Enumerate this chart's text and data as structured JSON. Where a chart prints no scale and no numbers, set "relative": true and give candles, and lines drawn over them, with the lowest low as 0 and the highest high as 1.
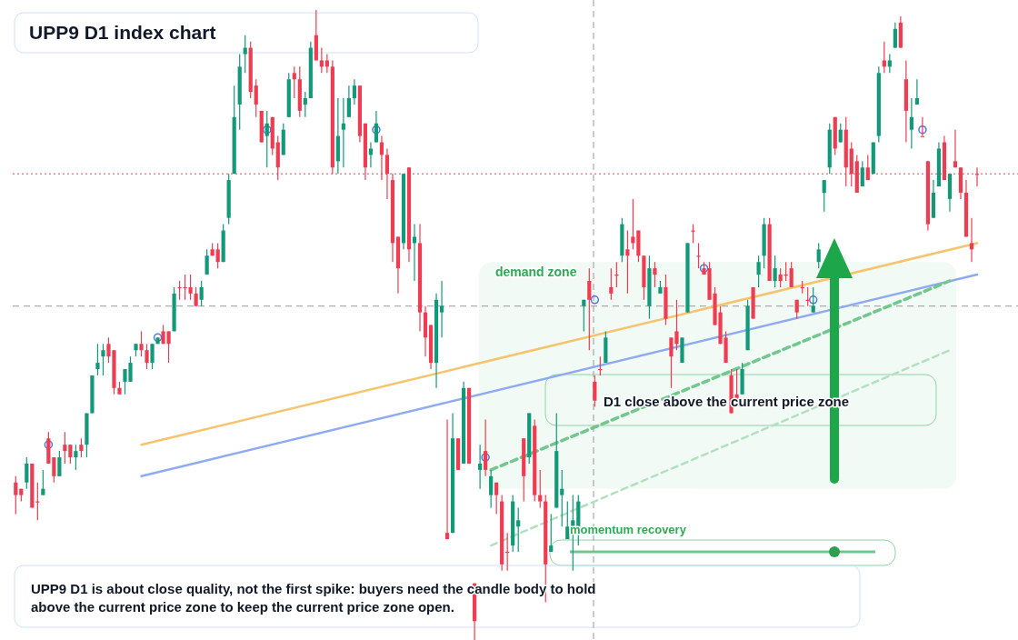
{
  "chart_data": {
    "type": "candlestick",
    "title": "UPP9 D1 index chart",
    "relative": true,
    "categories": [
      null,
      null,
      null,
      null,
      null,
      null,
      null,
      null,
      null,
      null,
      null,
      null,
      null,
      null,
      null,
      null,
      null,
      null,
      null,
      null,
      null,
      null,
      null,
      null,
      null,
      null,
      null,
      null,
      null,
      null,
      null,
      null,
      null,
      null,
      null,
      null,
      null,
      null,
      null,
      null,
      null,
      null,
      null,
      null,
      null,
      null,
      null,
      null,
      null,
      null,
      null,
      null,
      null,
      null,
      null,
      null,
      null,
      null,
      null,
      null,
      null,
      null,
      null,
      null,
      null,
      null,
      null,
      null,
      null,
      null,
      null,
      null,
      null,
      null,
      null,
      null,
      null,
      null,
      null,
      null,
      null,
      null,
      null,
      null,
      null,
      null,
      null,
      null,
      null,
      null,
      null,
      null,
      null,
      null,
      null,
      null,
      null,
      null,
      null,
      null,
      null,
      null,
      null,
      null,
      null,
      null,
      null,
      null,
      null,
      null,
      null,
      null,
      null,
      null,
      null,
      null,
      null,
      null,
      null,
      null,
      null,
      null,
      null,
      null,
      null,
      null,
      null,
      null,
      null,
      null,
      null,
      null,
      null,
      null,
      null,
      null,
      null,
      null,
      null,
      null,
      null,
      null,
      null,
      null,
      null,
      null,
      null,
      null,
      null,
      null,
      null,
      null,
      null,
      null,
      null,
      null,
      null,
      null,
      null,
      null,
      null,
      null,
      null,
      null,
      null,
      null,
      null,
      null,
      null,
      null,
      null,
      null,
      null,
      null,
      null,
      null,
      null
    ],
    "ohlc": [
      [
        0.25,
        0.26,
        0.2,
        0.23
      ],
      [
        0.24,
        0.24,
        0.22,
        0.23
      ],
      [
        0.25,
        0.29,
        0.24,
        0.28
      ],
      [
        0.28,
        0.28,
        0.21,
        0.21
      ],
      [
        0.22,
        0.25,
        0.19,
        0.22
      ],
      [
        0.23,
        0.27,
        0.23,
        0.24
      ],
      [
        0.32,
        0.33,
        0.28,
        0.28
      ],
      [
        0.29,
        0.29,
        0.25,
        0.26
      ],
      [
        0.26,
        0.3,
        0.26,
        0.29
      ],
      [
        0.31,
        0.33,
        0.28,
        0.3
      ],
      [
        0.31,
        0.31,
        0.28,
        0.29
      ],
      [
        0.29,
        0.31,
        0.27,
        0.3
      ],
      [
        0.31,
        0.32,
        0.29,
        0.3
      ],
      [
        0.31,
        0.36,
        0.29,
        0.36
      ],
      [
        0.36,
        0.42,
        0.36,
        0.42
      ],
      [
        0.43,
        0.47,
        0.42,
        0.44
      ],
      [
        0.45,
        0.47,
        0.42,
        0.46
      ],
      [
        0.47,
        0.48,
        0.44,
        0.45
      ],
      [
        0.46,
        0.46,
        0.39,
        0.4
      ],
      [
        0.4,
        0.41,
        0.39,
        0.39
      ],
      [
        0.41,
        0.43,
        0.39,
        0.43
      ],
      [
        0.41,
        0.45,
        0.41,
        0.44
      ],
      [
        0.46,
        0.47,
        0.45,
        0.47
      ],
      [
        0.47,
        0.49,
        0.45,
        0.46
      ],
      [
        0.46,
        0.47,
        0.43,
        0.44
      ],
      [
        0.44,
        0.47,
        0.43,
        0.47
      ],
      [
        0.47,
        0.48,
        0.47,
        0.48
      ],
      [
        0.49,
        0.5,
        0.47,
        0.47
      ],
      [
        0.49,
        0.49,
        0.44,
        0.47
      ],
      [
        0.49,
        0.56,
        0.49,
        0.55
      ],
      [
        0.56,
        0.57,
        0.54,
        0.56
      ],
      [
        0.56,
        0.58,
        0.54,
        0.56
      ],
      [
        0.56,
        0.58,
        0.54,
        0.55
      ],
      [
        0.55,
        0.56,
        0.53,
        0.53
      ],
      [
        0.54,
        0.57,
        0.53,
        0.56
      ],
      [
        0.58,
        0.62,
        0.58,
        0.61
      ],
      [
        0.62,
        0.63,
        0.61,
        0.61
      ],
      [
        0.62,
        0.63,
        0.59,
        0.6
      ],
      [
        0.6,
        0.66,
        0.6,
        0.65
      ],
      [
        0.67,
        0.74,
        0.66,
        0.73
      ],
      [
        0.74,
        0.88,
        0.74,
        0.83
      ],
      [
        0.85,
        0.93,
        0.81,
        0.91
      ],
      [
        0.93,
        0.96,
        0.9,
        0.94
      ],
      [
        0.94,
        0.95,
        0.86,
        0.87
      ],
      [
        0.88,
        0.89,
        0.83,
        0.85
      ],
      [
        0.84,
        0.84,
        0.79,
        0.79
      ],
      [
        0.8,
        0.84,
        0.75,
        0.82
      ],
      [
        0.83,
        0.83,
        0.77,
        0.78
      ],
      [
        0.79,
        0.8,
        0.73,
        0.75
      ],
      [
        0.77,
        0.82,
        0.77,
        0.81
      ],
      [
        0.83,
        0.9,
        0.83,
        0.89
      ],
      [
        0.9,
        0.91,
        0.86,
        0.89
      ],
      [
        0.89,
        0.91,
        0.83,
        0.84
      ],
      [
        0.85,
        0.87,
        0.83,
        0.86
      ],
      [
        0.86,
        0.95,
        0.86,
        0.94
      ],
      [
        0.96,
        1.0,
        0.92,
        0.92
      ],
      [
        0.92,
        0.94,
        0.9,
        0.91
      ],
      [
        0.92,
        0.93,
        0.9,
        0.91
      ],
      [
        0.91,
        0.92,
        0.74,
        0.75
      ],
      [
        0.76,
        0.86,
        0.74,
        0.8
      ],
      [
        0.81,
        0.86,
        0.75,
        0.82
      ],
      [
        0.83,
        0.88,
        0.83,
        0.86
      ],
      [
        0.86,
        0.89,
        0.85,
        0.88
      ],
      [
        0.88,
        0.88,
        0.79,
        0.8
      ],
      [
        0.82,
        0.82,
        0.73,
        0.75
      ],
      [
        0.77,
        0.79,
        0.75,
        0.78
      ],
      [
        0.79,
        0.84,
        0.79,
        0.82
      ],
      [
        0.79,
        0.8,
        0.73,
        0.77
      ],
      [
        0.77,
        0.78,
        0.7,
        0.74
      ],
      [
        0.73,
        0.74,
        0.6,
        0.63
      ],
      [
        0.64,
        0.64,
        0.55,
        0.59
      ],
      [
        0.63,
        0.74,
        0.62,
        0.74
      ],
      [
        0.75,
        0.75,
        0.6,
        0.62
      ],
      [
        0.63,
        0.66,
        0.57,
        0.64
      ],
      [
        0.63,
        0.66,
        0.49,
        0.52
      ],
      [
        0.52,
        0.53,
        0.45,
        0.48
      ],
      [
        0.5,
        0.5,
        0.43,
        0.44
      ],
      [
        0.44,
        0.55,
        0.4,
        0.54
      ],
      [
        0.52,
        0.57,
        0.48,
        0.53
      ],
      [
        0.17,
        0.35,
        0.16,
        0.16
      ],
      [
        0.17,
        0.36,
        0.17,
        0.32
      ],
      [
        0.32,
        0.32,
        0.27,
        0.27
      ],
      [
        0.28,
        0.41,
        0.28,
        0.4
      ],
      [
        0.4,
        0.4,
        0.28,
        0.28
      ],
      [
        0.09,
        0.09,
        0.0,
        0.03
      ],
      [
        0.27,
        0.31,
        0.24,
        0.28
      ],
      [
        0.3,
        0.35,
        0.26,
        0.27
      ],
      [
        0.23,
        0.27,
        0.21,
        0.26
      ],
      [
        0.25,
        0.25,
        0.2,
        0.23
      ],
      [
        0.22,
        0.23,
        0.11,
        0.12
      ],
      [
        0.14,
        0.17,
        0.11,
        0.14
      ],
      [
        0.15,
        0.23,
        0.14,
        0.22
      ],
      [
        0.18,
        0.21,
        0.14,
        0.19
      ],
      [
        0.32,
        0.32,
        0.22,
        0.26
      ],
      [
        0.29,
        0.36,
        0.28,
        0.36
      ],
      [
        0.34,
        0.35,
        0.22,
        0.23
      ],
      [
        0.23,
        0.27,
        0.21,
        0.22
      ],
      [
        0.22,
        0.23,
        0.06,
        0.12
      ],
      [
        0.14,
        0.2,
        0.14,
        0.15
      ],
      [
        0.21,
        0.36,
        0.21,
        0.3
      ],
      [
        0.23,
        0.27,
        0.18,
        0.24
      ],
      [
        0.16,
        0.22,
        0.16,
        0.18
      ],
      [
        0.18,
        0.23,
        0.11,
        0.19
      ],
      [
        0.18,
        0.23,
        0.15,
        0.22
      ],
      [
        0.53,
        0.54,
        0.49,
        0.54
      ],
      [
        0.57,
        0.59,
        0.46,
        0.54
      ],
      [
        0.41,
        0.42,
        0.37,
        0.38
      ],
      [
        0.43,
        0.45,
        0.42,
        0.43
      ],
      [
        0.44,
        0.49,
        0.44,
        0.48
      ],
      [
        0.56,
        0.59,
        0.54,
        0.55
      ],
      [
        0.58,
        0.6,
        0.56,
        0.58
      ],
      [
        0.61,
        0.67,
        0.6,
        0.66
      ],
      [
        0.62,
        0.65,
        0.55,
        0.61
      ],
      [
        0.64,
        0.7,
        0.62,
        0.63
      ],
      [
        0.65,
        0.65,
        0.6,
        0.61
      ],
      [
        0.61,
        0.61,
        0.54,
        0.56
      ],
      [
        0.53,
        0.61,
        0.51,
        0.59
      ],
      [
        0.59,
        0.6,
        0.56,
        0.58
      ],
      [
        0.55,
        0.57,
        0.55,
        0.56
      ],
      [
        0.56,
        0.58,
        0.5,
        0.51
      ],
      [
        0.48,
        0.48,
        0.4,
        0.45
      ],
      [
        0.49,
        0.54,
        0.46,
        0.47
      ],
      [
        0.44,
        0.48,
        0.44,
        0.48
      ],
      [
        0.52,
        0.63,
        0.52,
        0.63
      ],
      [
        0.65,
        0.66,
        0.63,
        0.65
      ],
      [
        0.61,
        0.63,
        0.59,
        0.61
      ],
      [
        0.59,
        0.6,
        0.58,
        0.58
      ],
      [
        0.59,
        0.6,
        0.54,
        0.54
      ],
      [
        0.55,
        0.56,
        0.5,
        0.5
      ],
      [
        0.52,
        0.53,
        0.47,
        0.47
      ],
      [
        0.48,
        0.49,
        0.44,
        0.44
      ],
      [
        0.42,
        0.43,
        0.36,
        0.36
      ],
      [
        0.39,
        0.43,
        0.38,
        0.38
      ],
      [
        0.39,
        0.44,
        0.39,
        0.43
      ],
      [
        0.46,
        0.54,
        0.46,
        0.53
      ],
      [
        0.56,
        0.56,
        0.51,
        0.51
      ],
      [
        0.58,
        0.61,
        0.56,
        0.6
      ],
      [
        0.61,
        0.67,
        0.59,
        0.66
      ],
      [
        0.66,
        0.67,
        0.57,
        0.57
      ],
      [
        0.57,
        0.61,
        0.56,
        0.59
      ],
      [
        0.58,
        0.59,
        0.56,
        0.57
      ],
      [
        0.58,
        0.6,
        0.57,
        0.58
      ],
      [
        0.59,
        0.6,
        0.56,
        0.56
      ],
      [
        0.54,
        0.54,
        0.51,
        0.52
      ],
      [
        0.56,
        0.57,
        0.55,
        0.56
      ],
      [
        0.54,
        0.56,
        0.53,
        0.54
      ],
      [
        0.52,
        0.56,
        0.52,
        0.53
      ],
      [
        0.6,
        0.63,
        0.59,
        0.62
      ],
      [
        0.71,
        0.73,
        0.68,
        0.73
      ],
      [
        0.75,
        0.82,
        0.74,
        0.81
      ],
      [
        0.83,
        0.83,
        0.77,
        0.78
      ],
      [
        0.79,
        0.82,
        0.79,
        0.81
      ],
      [
        0.81,
        0.83,
        0.72,
        0.75
      ],
      [
        0.78,
        0.79,
        0.72,
        0.74
      ],
      [
        0.76,
        0.77,
        0.71,
        0.71
      ],
      [
        0.72,
        0.76,
        0.72,
        0.75
      ],
      [
        0.75,
        0.77,
        0.73,
        0.73
      ],
      [
        0.74,
        0.79,
        0.74,
        0.79
      ],
      [
        0.8,
        0.91,
        0.79,
        0.9
      ],
      [
        0.92,
        0.95,
        0.9,
        0.91
      ],
      [
        0.91,
        0.93,
        0.9,
        0.92
      ],
      [
        0.94,
        0.98,
        0.94,
        0.97
      ],
      [
        0.98,
        0.99,
        0.94,
        0.94
      ],
      [
        0.89,
        0.92,
        0.79,
        0.84
      ],
      [
        0.81,
        0.86,
        0.78,
        0.83
      ],
      [
        0.85,
        0.89,
        0.85,
        0.86
      ],
      [
        0.8,
        0.83,
        0.8,
        0.8
      ],
      [
        0.76,
        0.76,
        0.65,
        0.66
      ],
      [
        0.67,
        0.73,
        0.67,
        0.71
      ],
      [
        0.72,
        0.79,
        0.72,
        0.78
      ],
      [
        0.79,
        0.8,
        0.73,
        0.73
      ],
      [
        0.7,
        0.74,
        0.68,
        0.74
      ],
      [
        0.76,
        0.81,
        0.75,
        0.75
      ],
      [
        0.75,
        0.75,
        0.7,
        0.71
      ],
      [
        0.71,
        0.73,
        0.64,
        0.64
      ],
      [
        0.63,
        0.67,
        0.6,
        0.62
      ],
      [
        0.74,
        0.75,
        0.72,
        0.74
      ]
    ],
    "series": [
      {
        "type": "line",
        "color": "#f6c46e",
        "line_style": "solid",
        "values": [
          null,
          null,
          null,
          null,
          null,
          null,
          null,
          null,
          null,
          null,
          null,
          null,
          null,
          null,
          null,
          null,
          null,
          null,
          null,
          null,
          null,
          null,
          null,
          0.31,
          null,
          null,
          null,
          null,
          null,
          null,
          null,
          null,
          null,
          null,
          null,
          null,
          null,
          null,
          null,
          null,
          null,
          null,
          null,
          null,
          null,
          null,
          null,
          null,
          null,
          null,
          null,
          null,
          null,
          null,
          null,
          null,
          null,
          null,
          null,
          null,
          null,
          null,
          null,
          null,
          null,
          null,
          null,
          null,
          null,
          null,
          null,
          null,
          null,
          null,
          null,
          null,
          null,
          null,
          null,
          null,
          null,
          null,
          null,
          null,
          null,
          null,
          null,
          null,
          null,
          null,
          null,
          null,
          null,
          null,
          null,
          null,
          null,
          null,
          null,
          null,
          null,
          null,
          null,
          null,
          null,
          null,
          null,
          null,
          null,
          null,
          null,
          null,
          null,
          null,
          null,
          null,
          null,
          null,
          null,
          null,
          null,
          null,
          null,
          null,
          null,
          null,
          null,
          null,
          null,
          null,
          null,
          null,
          null,
          null,
          null,
          null,
          null,
          null,
          null,
          null,
          null,
          null,
          null,
          null,
          null,
          null,
          null,
          null,
          null,
          null,
          null,
          null,
          null,
          null,
          null,
          null,
          null,
          null,
          null,
          null,
          null,
          null,
          null,
          null,
          null,
          null,
          null,
          null,
          null,
          null,
          null,
          null,
          null,
          null,
          null,
          null,
          0.63
        ]
      },
      {
        "type": "line",
        "color": "#8eaaf0",
        "line_style": "solid",
        "values": [
          null,
          null,
          null,
          null,
          null,
          null,
          null,
          null,
          null,
          null,
          null,
          null,
          null,
          null,
          null,
          null,
          null,
          null,
          null,
          null,
          null,
          null,
          null,
          0.26,
          null,
          null,
          null,
          null,
          null,
          null,
          null,
          null,
          null,
          null,
          null,
          null,
          null,
          null,
          null,
          null,
          null,
          null,
          null,
          null,
          null,
          null,
          null,
          null,
          null,
          null,
          null,
          null,
          null,
          null,
          null,
          null,
          null,
          null,
          null,
          null,
          null,
          null,
          null,
          null,
          null,
          null,
          null,
          null,
          null,
          null,
          null,
          null,
          null,
          null,
          null,
          null,
          null,
          null,
          null,
          null,
          null,
          null,
          null,
          null,
          null,
          null,
          null,
          null,
          null,
          null,
          null,
          null,
          null,
          null,
          null,
          null,
          null,
          null,
          null,
          null,
          null,
          null,
          null,
          null,
          null,
          null,
          null,
          null,
          null,
          null,
          null,
          null,
          null,
          null,
          null,
          null,
          null,
          null,
          null,
          null,
          null,
          null,
          null,
          null,
          null,
          null,
          null,
          null,
          null,
          null,
          null,
          null,
          null,
          null,
          null,
          null,
          null,
          null,
          null,
          null,
          null,
          null,
          null,
          null,
          null,
          null,
          null,
          null,
          null,
          null,
          null,
          null,
          null,
          null,
          null,
          null,
          null,
          null,
          null,
          null,
          null,
          null,
          null,
          null,
          null,
          null,
          null,
          null,
          null,
          null,
          null,
          null,
          null,
          null,
          null,
          null,
          0.58
        ]
      },
      {
        "type": "line",
        "color": "#72c78e",
        "line_style": "dashed",
        "values": [
          null,
          null,
          null,
          null,
          null,
          null,
          null,
          null,
          null,
          null,
          null,
          null,
          null,
          null,
          null,
          null,
          null,
          null,
          null,
          null,
          null,
          null,
          null,
          null,
          null,
          null,
          null,
          null,
          null,
          null,
          null,
          null,
          null,
          null,
          null,
          null,
          null,
          null,
          null,
          null,
          null,
          null,
          null,
          null,
          null,
          null,
          null,
          null,
          null,
          null,
          null,
          null,
          null,
          null,
          null,
          null,
          null,
          null,
          null,
          null,
          null,
          null,
          null,
          null,
          null,
          null,
          null,
          null,
          null,
          null,
          null,
          null,
          null,
          null,
          null,
          null,
          null,
          null,
          null,
          null,
          null,
          null,
          null,
          null,
          null,
          null,
          null,
          0.27,
          null,
          null,
          null,
          null,
          null,
          null,
          null,
          null,
          null,
          null,
          null,
          null,
          null,
          null,
          null,
          null,
          null,
          null,
          null,
          null,
          null,
          null,
          null,
          null,
          null,
          null,
          null,
          null,
          null,
          null,
          null,
          null,
          null,
          null,
          null,
          null,
          null,
          null,
          null,
          null,
          null,
          null,
          null,
          null,
          null,
          null,
          null,
          null,
          null,
          null,
          null,
          null,
          null,
          null,
          null,
          null,
          null,
          null,
          null,
          null,
          null,
          null,
          null,
          null,
          null,
          null,
          null,
          null,
          null,
          null,
          null,
          null,
          null,
          null,
          null,
          null,
          null,
          null,
          null,
          null,
          null,
          null,
          null,
          0.57,
          null,
          null,
          null,
          null,
          null
        ]
      },
      {
        "type": "line",
        "color": "#b3e0c2",
        "line_style": "dashed",
        "values": [
          null,
          null,
          null,
          null,
          null,
          null,
          null,
          null,
          null,
          null,
          null,
          null,
          null,
          null,
          null,
          null,
          null,
          null,
          null,
          null,
          null,
          null,
          null,
          null,
          null,
          null,
          null,
          null,
          null,
          null,
          null,
          null,
          null,
          null,
          null,
          null,
          null,
          null,
          null,
          null,
          null,
          null,
          null,
          null,
          null,
          null,
          null,
          null,
          null,
          null,
          null,
          null,
          null,
          null,
          null,
          null,
          null,
          null,
          null,
          null,
          null,
          null,
          null,
          null,
          null,
          null,
          null,
          null,
          null,
          null,
          null,
          null,
          null,
          null,
          null,
          null,
          null,
          null,
          null,
          null,
          null,
          null,
          null,
          null,
          null,
          null,
          null,
          0.15,
          null,
          null,
          null,
          null,
          null,
          null,
          null,
          null,
          null,
          null,
          null,
          null,
          null,
          null,
          null,
          null,
          null,
          null,
          null,
          null,
          null,
          null,
          null,
          null,
          null,
          null,
          null,
          null,
          null,
          null,
          null,
          null,
          null,
          null,
          null,
          null,
          null,
          null,
          null,
          null,
          null,
          null,
          null,
          null,
          null,
          null,
          null,
          null,
          null,
          null,
          null,
          null,
          null,
          null,
          null,
          null,
          null,
          null,
          null,
          null,
          null,
          null,
          null,
          null,
          null,
          null,
          null,
          null,
          null,
          null,
          null,
          null,
          null,
          null,
          null,
          null,
          null,
          null,
          null,
          null,
          null,
          null,
          null,
          0.46,
          null,
          null,
          null,
          null,
          null
        ]
      },
      {
        "type": "scatter",
        "color": "#4a78e6",
        "marker": "circle",
        "values": [
          null,
          null,
          null,
          null,
          null,
          null,
          0.31,
          null,
          null,
          null,
          null,
          null,
          null,
          null,
          null,
          null,
          null,
          null,
          null,
          null,
          null,
          null,
          null,
          null,
          null,
          null,
          0.48,
          null,
          null,
          null,
          null,
          null,
          null,
          null,
          null,
          null,
          null,
          null,
          null,
          null,
          null,
          null,
          null,
          null,
          null,
          null,
          0.81,
          null,
          null,
          null,
          null,
          null,
          null,
          null,
          null,
          null,
          null,
          null,
          null,
          null,
          null,
          null,
          null,
          null,
          null,
          null,
          0.81,
          null,
          null,
          null,
          null,
          null,
          null,
          null,
          null,
          null,
          null,
          null,
          null,
          null,
          null,
          null,
          null,
          null,
          null,
          null,
          0.29,
          null,
          null,
          null,
          null,
          null,
          null,
          null,
          null,
          null,
          null,
          null,
          null,
          null,
          null,
          null,
          null,
          null,
          null,
          null,
          0.54,
          null,
          null,
          null,
          null,
          null,
          null,
          null,
          null,
          null,
          null,
          null,
          null,
          null,
          null,
          null,
          null,
          null,
          null,
          null,
          0.59,
          null,
          null,
          null,
          null,
          null,
          null,
          null,
          null,
          null,
          null,
          null,
          null,
          null,
          null,
          null,
          null,
          null,
          null,
          null,
          0.54,
          null,
          null,
          null,
          null,
          null,
          null,
          null,
          null,
          null,
          null,
          null,
          null,
          null,
          null,
          null,
          null,
          null,
          null,
          null,
          0.81,
          null,
          null,
          null,
          null,
          null,
          null,
          null,
          null,
          null,
          null
        ]
      }
    ],
    "ref_lines": [
      {
        "axis": "y",
        "value": 0.74,
        "color": "#e8414f",
        "line_style": "dotted"
      },
      {
        "axis": "y",
        "value": 0.53,
        "color": "#9a9a9a",
        "line_style": "dashed"
      }
    ],
    "bands": [
      {
        "axis": "y",
        "from": 0.24,
        "to": 0.6,
        "label": "demand zone",
        "color": "#eef9f1"
      }
    ],
    "annotations": [
      "D1 close above the current price zone",
      "momentum recovery",
      "UPP9 D1 is about close quality, not the first spike: buyers need the candle body to hold above the current price zone to keep the current price zone open."
    ]
  }
}
